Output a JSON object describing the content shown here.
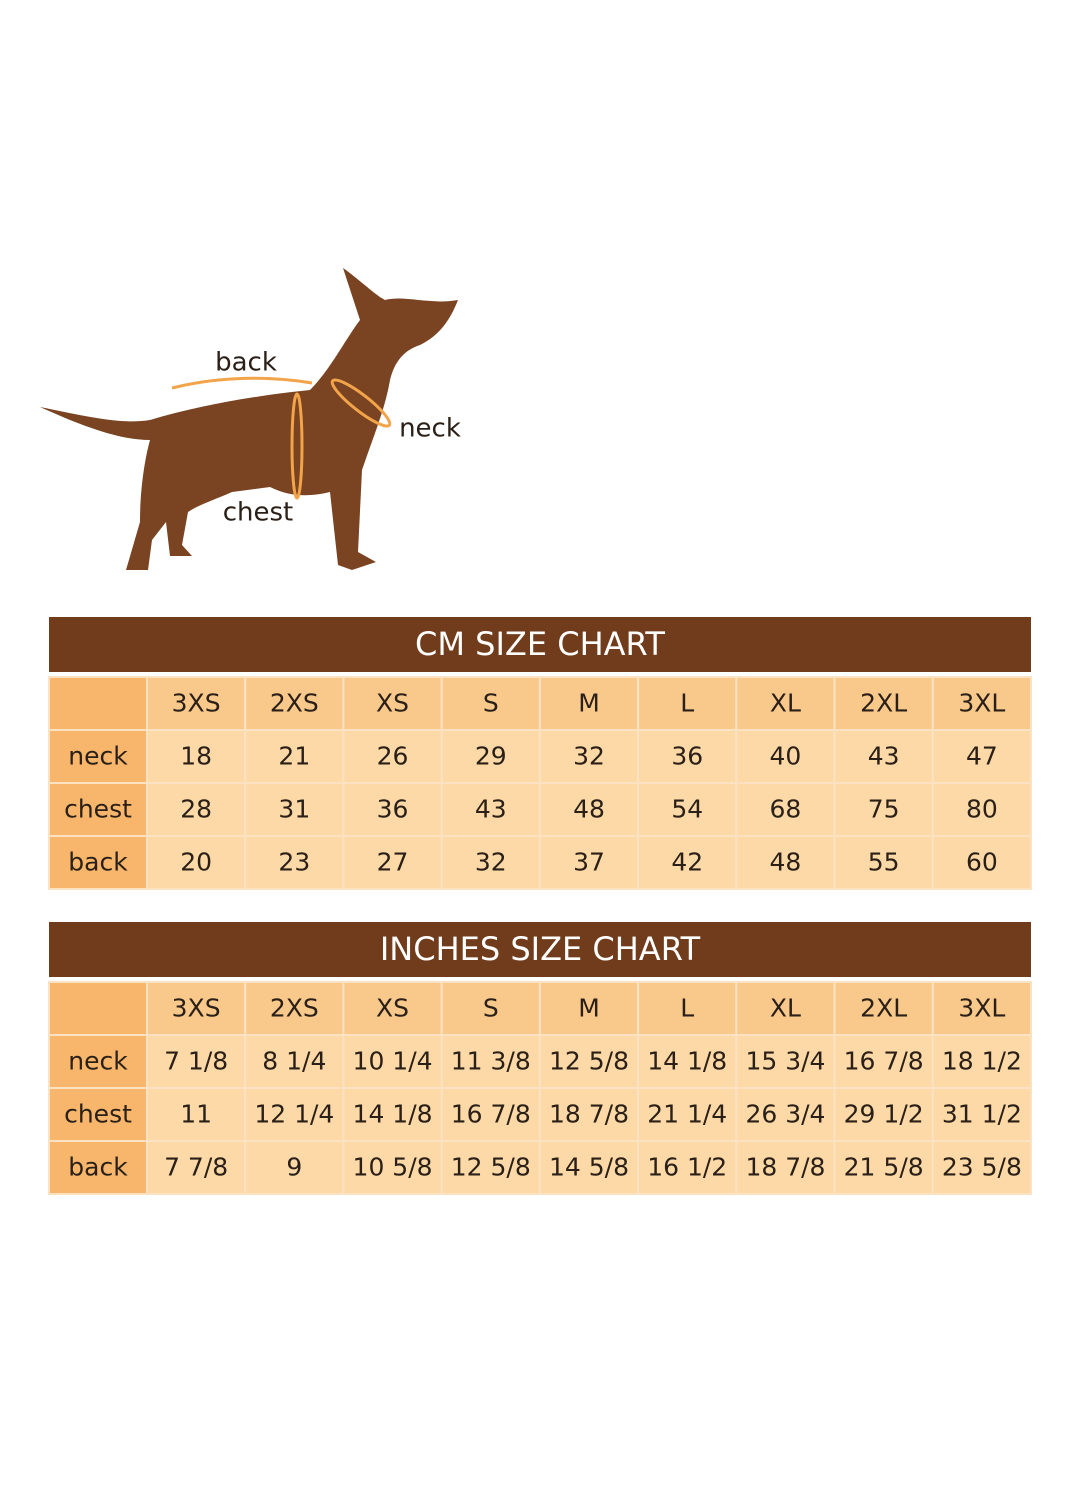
{
  "diagram": {
    "labels": [
      "back",
      "neck",
      "chest"
    ]
  },
  "tables": [
    {
      "title": "CM SIZE CHART",
      "header": [
        "3XS",
        "2XS",
        "XS",
        "S",
        "M",
        "L",
        "XL",
        "2XL",
        "3XL"
      ],
      "rows": [
        [
          "neck",
          18,
          21,
          26,
          29,
          32,
          36,
          40,
          43,
          47
        ],
        [
          "chest",
          28,
          31,
          36,
          43,
          48,
          54,
          68,
          75,
          80
        ],
        [
          "back",
          20,
          23,
          27,
          32,
          37,
          42,
          48,
          55,
          60
        ]
      ]
    },
    {
      "title": "INCHES SIZE CHART",
      "header": [
        "3XS",
        "2XS",
        "XS",
        "S",
        "M",
        "L",
        "XL",
        "2XL",
        "3XL"
      ],
      "rows": [
        [
          "neck",
          "7 1/8",
          "8 1/4",
          "10 1/4",
          "11 3/8",
          "12 5/8",
          "14 1/8",
          "15 3/4",
          "16 7/8",
          "18 1/2"
        ],
        [
          "chest",
          "11",
          "12 1/4",
          "14 1/8",
          "16 7/8",
          "18 7/8",
          "21 1/4",
          "26 3/4",
          "29 1/2",
          "31 1/2"
        ],
        [
          "back",
          "7 7/8",
          "9",
          "10 5/8",
          "12 5/8",
          "14 5/8",
          "16 1/2",
          "18 7/8",
          "21 5/8",
          "23 5/8"
        ]
      ]
    }
  ]
}
